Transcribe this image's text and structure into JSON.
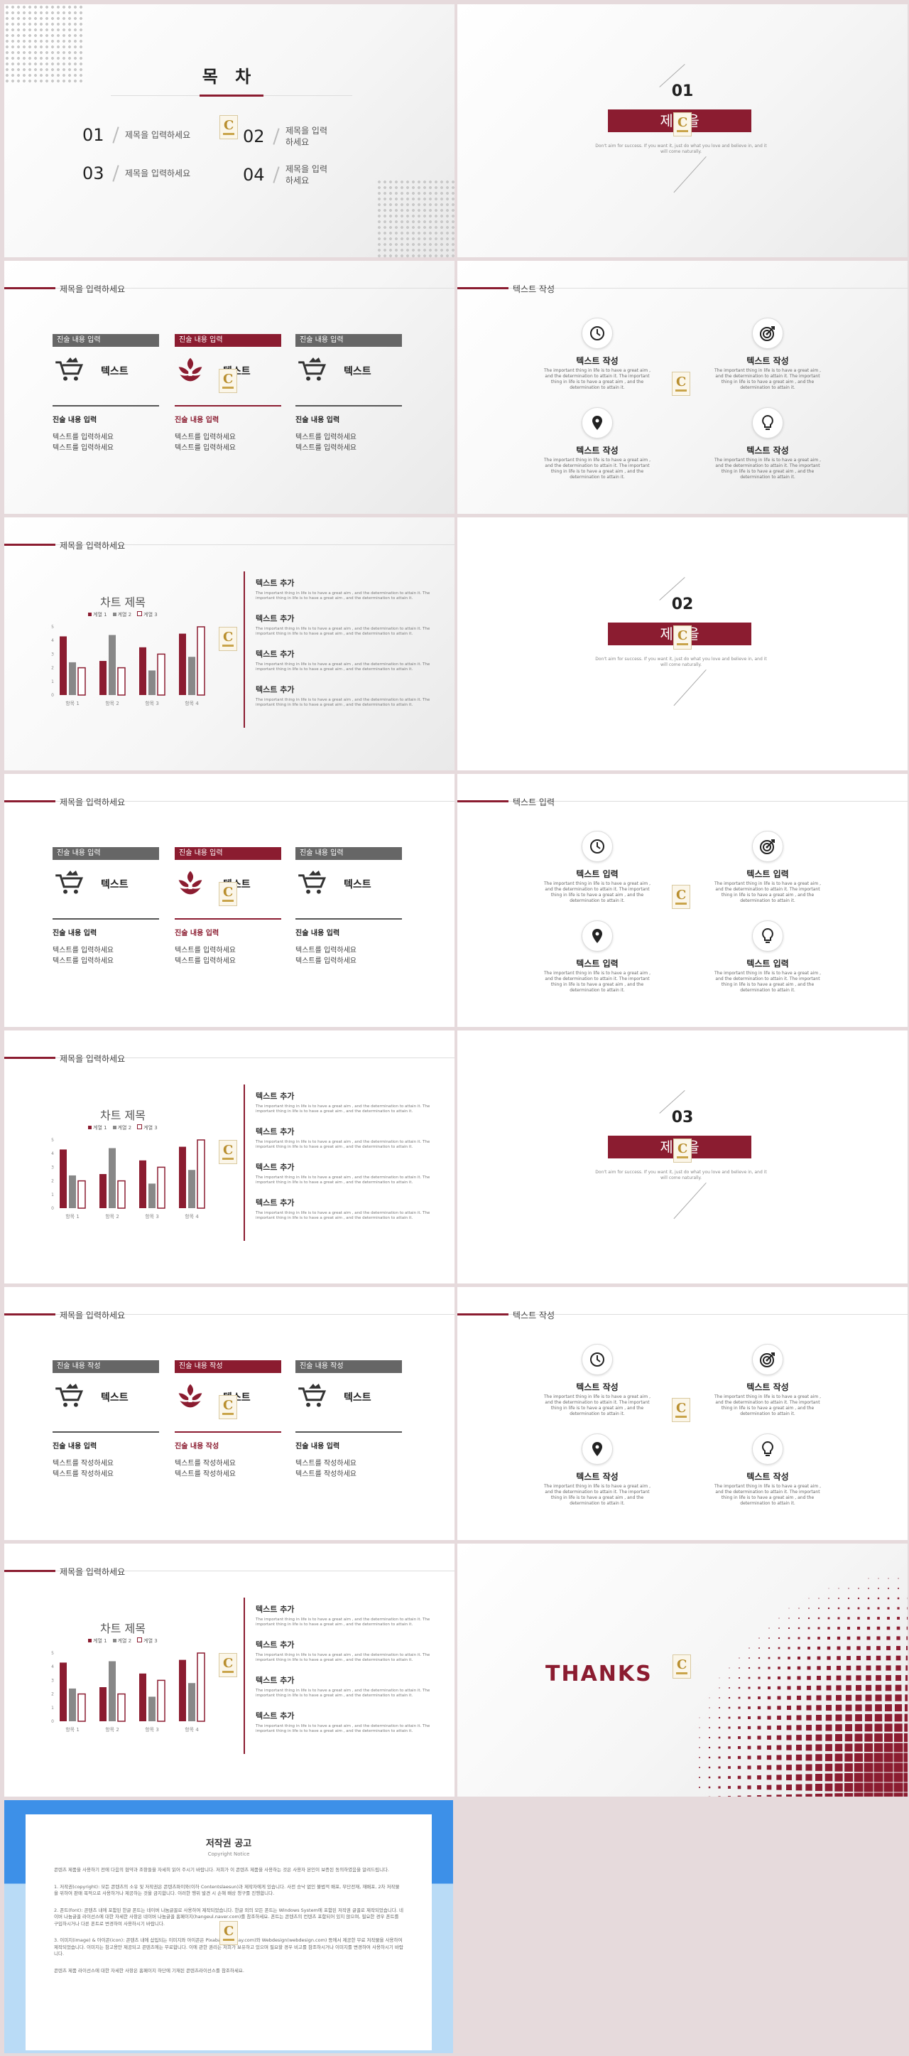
{
  "toc": {
    "title": "목 차",
    "items": [
      {
        "num": "01",
        "text": "제목을 입력하세요"
      },
      {
        "num": "02",
        "text": "제목을 입력하세요"
      },
      {
        "num": "03",
        "text": "제목을 입력하세요"
      },
      {
        "num": "04",
        "text": "제목을 입력하세요"
      }
    ]
  },
  "sections": [
    {
      "num": "01",
      "title": "제목을",
      "sub": "Don't aim for success. If you want it, just do what you love and believe in, and it will come naturally."
    },
    {
      "num": "02",
      "title": "제목을",
      "sub": "Don't aim for success. If you want it, just do what you love and believe in, and it will come naturally."
    },
    {
      "num": "03",
      "title": "제목을",
      "sub": "Don't aim for success. If you want it, just do what you love and believe in, and it will come naturally."
    }
  ],
  "header": "제목을 입력하세요",
  "header_text": "텍스트 작성",
  "header_text2": "텍스트 입력",
  "cards": [
    {
      "tag": "진술 내용 입력",
      "title": "텍스트",
      "sub": "진술 내용 입력",
      "body": "텍스트를 입력하세요\n텍스트를 입력하세요"
    },
    {
      "tag": "진술 내용 입력",
      "title": "텍스트",
      "sub": "진술 내용 입력",
      "body": "텍스트를 입력하세요\n텍스트를 입력하세요"
    },
    {
      "tag": "진술 내용 입력",
      "title": "텍스트",
      "sub": "진술 내용 입력",
      "body": "텍스트를 입력하세요\n텍스트를 입력하세요"
    }
  ],
  "cards3": [
    {
      "tag": "진술 내용 작성",
      "title": "텍스트",
      "sub": "진술 내용 입력",
      "body": "텍스트를 작성하세요\n텍스트를 작성하세요"
    },
    {
      "tag": "진술 내용 작성",
      "title": "텍스트",
      "sub": "진술 내용 작성",
      "body": "텍스트를 작성하세요\n텍스트를 작성하세요"
    },
    {
      "tag": "진술 내용 작성",
      "title": "텍스트",
      "sub": "진술 내용 입력",
      "body": "텍스트를 작성하세요\n텍스트를 작성하세요"
    }
  ],
  "icon_blocks": {
    "body": "The important thing in life is to have a great aim , and the determination to attain it. The important thing in life is to have a great aim , and the determination to attain it.",
    "titles1": [
      "텍스트 작성",
      "텍스트 작성",
      "텍스트 작성",
      "텍스트 작성"
    ],
    "titles2": [
      "텍스트 입력",
      "텍스트 입력",
      "텍스트 입력",
      "텍스트 입력"
    ],
    "titles3": [
      "텍스트 작성",
      "텍스트 작성",
      "텍스트 작성",
      "텍스트 작성"
    ],
    "icons": [
      "clock-icon",
      "target-icon",
      "location-pin-icon",
      "lightbulb-icon"
    ]
  },
  "chart_side": {
    "title": "텍스트 추가",
    "body": "The important thing in life is to have a great aim , and the determination to attain it. The important thing in life is to have a great aim , and the determination to attain it."
  },
  "chart_data": {
    "type": "bar",
    "title": "차트 제목",
    "categories": [
      "항목 1",
      "항목 2",
      "항목 3",
      "항목 4"
    ],
    "series": [
      {
        "name": "계열 1",
        "values": [
          4.3,
          2.5,
          3.5,
          4.5
        ],
        "color": "#8b1c30"
      },
      {
        "name": "계열 2",
        "values": [
          2.4,
          4.4,
          1.8,
          2.8
        ],
        "color": "#888888"
      },
      {
        "name": "계열 3",
        "values": [
          2,
          2,
          3,
          5
        ],
        "color": "outline"
      }
    ],
    "ylim": [
      0,
      5
    ],
    "yticks": [
      "0",
      "1",
      "2",
      "3",
      "4",
      "5"
    ]
  },
  "thanks": "THANKS",
  "copyright": {
    "title": "저작권 공고",
    "sub": "Copyright Notice",
    "paras": [
      "콘텐츠 제품을 사용하기 전에 다음의 협약과 조항들을 자세히 읽어 주시기 바랍니다. 저희가 이 콘텐츠 제품을 사용하는 것은 사용자 본인이 보증된 동의하였음을 알려드립니다.",
      "1. 저작권(copyright): 모든 콘텐츠의 소유 및 저작권은 콘텐츠파이와(이하 Contentslaesun)과 제작자에게 있습니다. 사전 승낙 없인 불법적 배포, 무단전재, 재배포, 2차 저작물을 위하여 판매 목적으로 사용하거나 제공하는 것을 금지합니다. 이러한 행위 발견 시 손해 배상 청구를 진행합니다.",
      "2. 폰트(font): 콘텐츠 내에 포함된 한글 폰트는 네이버 나눔글꼴로 사용하여 제작되었습니다. 한글 외의 모든 폰트는 Windows System에 포함된 저작권 글꼴로 제작되었습니다. 네이버 나눔글꼴 라이선스에 대한 자세한 사항은 네이버 나눔글꼴 홈페이지(hangeul.naver.com)를 참조하세요. 폰트는 콘텐츠의 컨텐츠 포함되어 있지 않으며, 필요한 경우 폰트를 구입하시거나 다른 폰트로 변경하여 사용하시기 바랍니다.",
      "3. 이미지(image) & 아이콘(icon): 콘텐츠 내에 삽입되는 이미지와 아이콘은 Pixabay(pixabay.com)와 Webdesign(webdesign.com) 등에서 제공한 무료 저작물을 사용하여 제작되었습니다. 이미지는 참고용만 제공되고 콘텐츠에는 무료합니다. 이에 관한 권리는 저희가 보유하고 있으며 필요할 경우 비고를 참조하시거나 이미지를 변경하여 사용하시기 바랍니다.",
      "콘텐츠 제품 라이선스에 대한 자세한 사항은 홈페이지 하단에 기재된 콘텐츠라이선스를 참조하세요."
    ]
  }
}
